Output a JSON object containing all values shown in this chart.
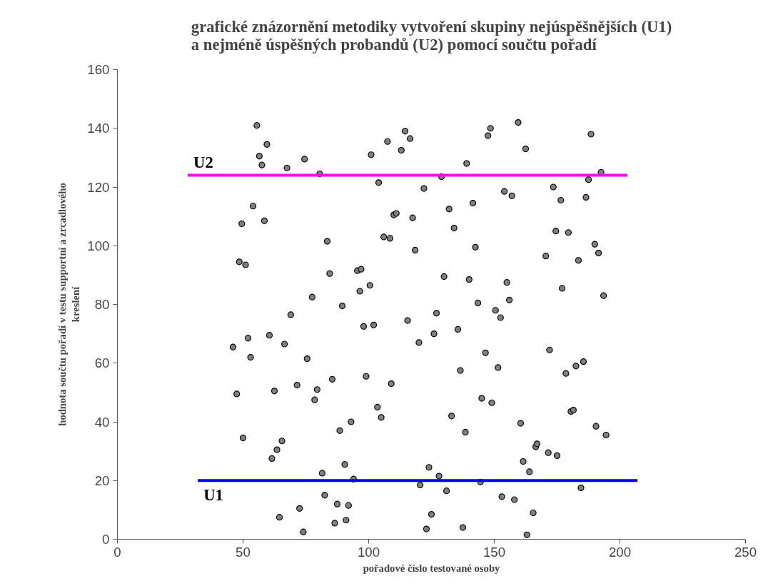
{
  "chart_data": {
    "type": "scatter",
    "title": "grafické znázornění metodiky vytvoření skupiny nejúspěšnějších (U1)\na nejméně úspěšných probandů (U2) pomocí součtu pořadí",
    "xlabel": "pořadové číslo testované osoby",
    "ylabel": "hodnota součtu pořadí v testu supportní a zrcadlového\nkreslení",
    "xlim": [
      0,
      250
    ],
    "xticks": [
      0,
      50,
      100,
      150,
      200,
      250
    ],
    "ylim": [
      0,
      160
    ],
    "yticks": [
      0,
      20,
      40,
      60,
      80,
      100,
      120,
      140,
      160
    ],
    "grid": false,
    "series": [
      {
        "marker": "circle",
        "color": "#808080",
        "x": [
          46,
          47.5,
          48.5,
          49.5,
          50,
          51,
          52,
          53,
          54,
          55.5,
          56.5,
          57.5,
          58.5,
          59.5,
          60.5,
          61.5,
          62.5,
          63.5,
          64.5,
          65.5,
          66.5,
          67.5,
          69,
          71.5,
          72.5,
          74,
          74.5,
          75.5,
          77.5,
          78.5,
          79.5,
          80.5,
          81.5,
          82.5,
          83.5,
          84.5,
          85.5,
          86.5,
          87.5,
          88.5,
          89.5,
          90.5,
          91,
          92,
          93,
          94,
          95.5,
          96.5,
          97,
          98,
          99,
          100.5,
          101,
          102,
          103.5,
          104,
          105,
          106,
          107.5,
          108.5,
          109,
          110,
          111,
          113,
          114.5,
          115.5,
          116.5,
          117.5,
          118.5,
          120,
          120.5,
          122,
          123,
          124,
          125,
          126,
          127,
          128,
          129,
          130,
          131,
          132,
          133,
          134,
          135.5,
          136.5,
          137.5,
          138.5,
          139,
          140,
          141.5,
          142.5,
          143.5,
          144.5,
          145,
          146.5,
          147.5,
          148.5,
          149,
          150.5,
          151.5,
          152.5,
          153,
          154,
          155,
          156,
          157,
          158,
          159.5,
          160.5,
          161.5,
          162.5,
          163,
          164,
          165.5,
          166.5,
          167,
          170.5,
          171.5,
          172,
          173.5,
          174.5,
          175,
          176.5,
          177,
          178.5,
          179.5,
          180.5,
          181.5,
          182.5,
          183.5,
          184.5,
          185.5,
          186.5,
          187.5,
          188.5,
          190,
          190.5,
          191.5,
          192.5,
          193.5,
          194.5
        ],
        "values": [
          65.5,
          49.5,
          94.5,
          107.5,
          34.5,
          93.5,
          68.5,
          62,
          113.5,
          141,
          130.5,
          127.5,
          108.5,
          134.5,
          69.5,
          27.5,
          50.5,
          30.5,
          7.5,
          33.5,
          66.5,
          126.5,
          76.5,
          52.5,
          10.5,
          2.5,
          129.5,
          61.5,
          82.5,
          47.5,
          51,
          124.5,
          22.5,
          15,
          101.5,
          90.5,
          54.5,
          5.5,
          12,
          37,
          79.5,
          25.5,
          6.5,
          11.5,
          40,
          20.5,
          91.5,
          84.5,
          92,
          72.5,
          55.5,
          86.5,
          131,
          73,
          45,
          121.5,
          41.5,
          103,
          135.5,
          102.5,
          53,
          110.5,
          111,
          132.5,
          139,
          74.5,
          136.5,
          109.5,
          98.5,
          67,
          18.5,
          119.5,
          3.5,
          24.5,
          8.5,
          70,
          77,
          21.5,
          123.5,
          89.5,
          16.5,
          112.5,
          42,
          106,
          71.5,
          57.5,
          4,
          36.5,
          128,
          88.5,
          114.5,
          99.5,
          80.5,
          19.5,
          48,
          63.5,
          137.5,
          140,
          46.5,
          78,
          58.5,
          75.5,
          14.5,
          118.5,
          87.5,
          81.5,
          117,
          13.5,
          142,
          39.5,
          26.5,
          133,
          1.5,
          23,
          9,
          31.5,
          32.5,
          96.5,
          29.5,
          64.5,
          120,
          105,
          28.5,
          115.5,
          85.5,
          56.5,
          104.5,
          43.5,
          44,
          59,
          95,
          17.5,
          60.5,
          116.5,
          122.5,
          138,
          100.5,
          38.5,
          97.5,
          125,
          83,
          35.5
        ]
      },
      {
        "type": "line",
        "name": "U2",
        "color": "#ff00ff",
        "x": [
          28,
          203
        ],
        "values": [
          124,
          124
        ]
      },
      {
        "type": "line",
        "name": "U1",
        "color": "#0000ff",
        "x": [
          32,
          207
        ],
        "values": [
          20,
          20
        ]
      }
    ]
  }
}
